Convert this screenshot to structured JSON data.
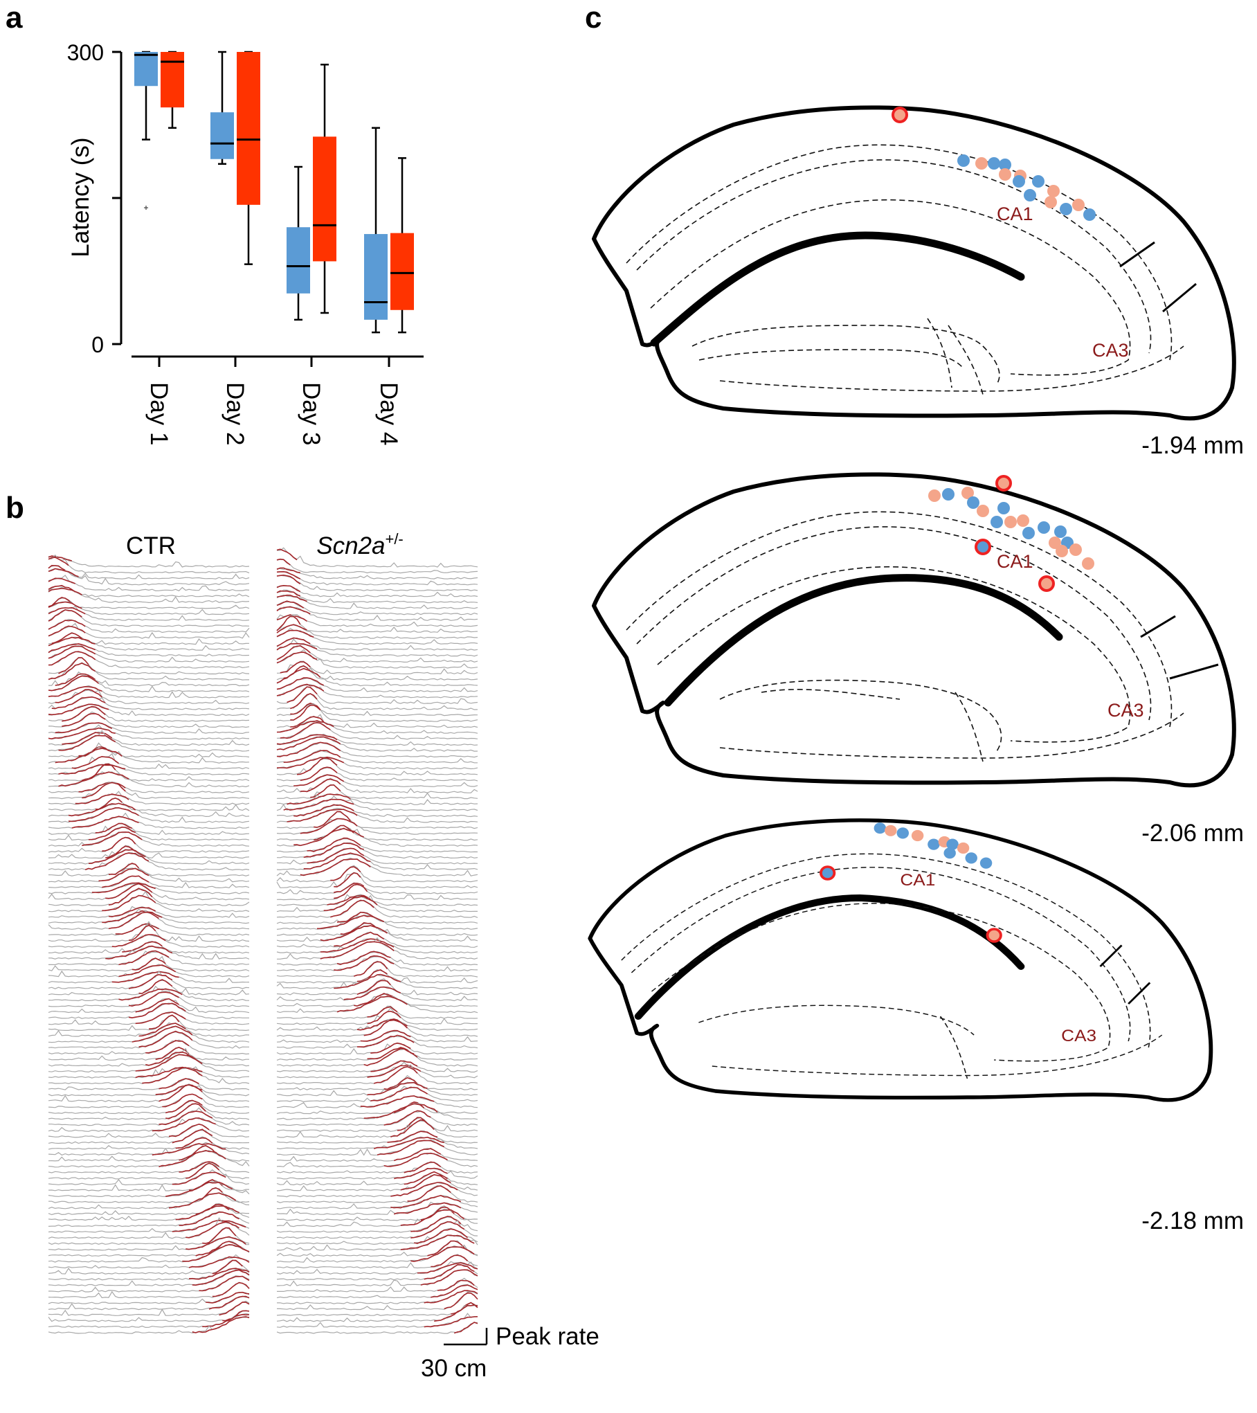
{
  "panels": {
    "a": "a",
    "b": "b",
    "c": "c"
  },
  "colors": {
    "ctr": "#5b9bd5",
    "scn": "#ff3300",
    "ctr_dot": "#5b9bd5",
    "scn_dot": "#f4a58a",
    "red_ring": "#ee2222",
    "trace": "#a3262a",
    "bg_trace": "#a8a8a8"
  },
  "chart_data": [
    {
      "type": "box",
      "ylabel": "Latency (s)",
      "ylim": [
        0,
        300
      ],
      "yticks": [
        "300",
        "0"
      ],
      "categories": [
        "Day 1",
        "Day 2",
        "Day 3",
        "Day 4"
      ],
      "series": [
        {
          "name": "CTR",
          "color": "#5b9bd5",
          "boxes": [
            {
              "min": 210,
              "q1": 265,
              "median": 297,
              "q3": 300,
              "max": 300,
              "outliers": [
                140
              ]
            },
            {
              "min": 185,
              "q1": 190,
              "median": 206,
              "q3": 238,
              "max": 300,
              "outliers": []
            },
            {
              "min": 25,
              "q1": 52,
              "median": 80,
              "q3": 120,
              "max": 182,
              "outliers": []
            },
            {
              "min": 12,
              "q1": 25,
              "median": 43,
              "q3": 113,
              "max": 222,
              "outliers": []
            }
          ]
        },
        {
          "name": "Scn2a+/-",
          "color": "#ff3300",
          "boxes": [
            {
              "min": 222,
              "q1": 243,
              "median": 290,
              "q3": 300,
              "max": 300,
              "outliers": []
            },
            {
              "min": 82,
              "q1": 143,
              "median": 210,
              "q3": 300,
              "max": 300,
              "outliers": []
            },
            {
              "min": 32,
              "q1": 85,
              "median": 122,
              "q3": 213,
              "max": 287,
              "outliers": []
            },
            {
              "min": 12,
              "q1": 35,
              "median": 73,
              "q3": 114,
              "max": 191,
              "outliers": []
            }
          ]
        }
      ]
    },
    {
      "type": "ridgeline",
      "groups": [
        {
          "title": "CTR",
          "n_cells": 130
        },
        {
          "title_base": "Scn2a",
          "title_sup": "+/-",
          "n_cells": 130
        }
      ],
      "scale_bar_x": "30 cm",
      "scale_bar_y": "Peak rate"
    },
    {
      "type": "anatomy",
      "sections": [
        {
          "label": "-1.94 mm",
          "ca1": "CA1",
          "ca3": "CA3"
        },
        {
          "label": "-2.06 mm",
          "ca1": "CA1",
          "ca3": "CA3"
        },
        {
          "label": "-2.18 mm",
          "ca1": "CA1",
          "ca3": "CA3"
        }
      ]
    }
  ]
}
